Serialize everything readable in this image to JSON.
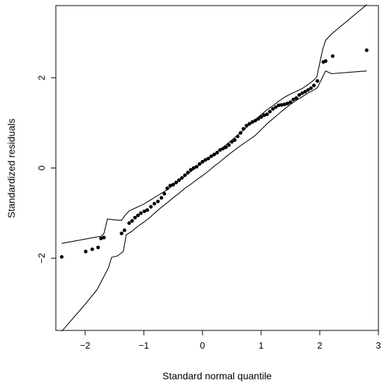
{
  "chart_data": {
    "type": "scatter",
    "title": "",
    "xlabel": "Standard normal quantile",
    "ylabel": "Standardized residuals",
    "xlim": [
      -2.5,
      3.0
    ],
    "ylim": [
      -3.6,
      3.6
    ],
    "x_ticks": [
      -2,
      -1,
      0,
      1,
      2,
      3
    ],
    "x_tick_labels": [
      "−2",
      "−1",
      "0",
      "1",
      "2",
      "3"
    ],
    "y_ticks": [
      -2,
      0,
      2
    ],
    "y_tick_labels": [
      "−2",
      "0",
      "2"
    ],
    "grid": false,
    "legend": "none",
    "point_color": "#000000",
    "line_color": "#000000",
    "points": {
      "x": [
        -2.4,
        -1.99,
        -1.88,
        -1.78,
        -1.73,
        -1.68,
        -1.38,
        -1.33,
        -1.25,
        -1.2,
        -1.15,
        -1.1,
        -1.05,
        -0.99,
        -0.94,
        -0.88,
        -0.82,
        -0.76,
        -0.7,
        -0.65,
        -0.6,
        -0.55,
        -0.5,
        -0.45,
        -0.4,
        -0.35,
        -0.3,
        -0.25,
        -0.2,
        -0.15,
        -0.1,
        -0.05,
        0.0,
        0.05,
        0.1,
        0.15,
        0.2,
        0.25,
        0.3,
        0.35,
        0.4,
        0.45,
        0.5,
        0.55,
        0.6,
        0.65,
        0.7,
        0.75,
        0.8,
        0.85,
        0.9,
        0.95,
        1.0,
        1.05,
        1.1,
        1.15,
        1.2,
        1.25,
        1.3,
        1.35,
        1.4,
        1.45,
        1.5,
        1.55,
        1.6,
        1.65,
        1.7,
        1.75,
        1.8,
        1.85,
        1.9,
        1.96,
        2.06,
        2.1,
        2.22,
        2.8
      ],
      "y": [
        -1.97,
        -1.85,
        -1.8,
        -1.76,
        -1.56,
        -1.54,
        -1.45,
        -1.38,
        -1.22,
        -1.17,
        -1.1,
        -1.05,
        -1.0,
        -0.96,
        -0.93,
        -0.86,
        -0.79,
        -0.74,
        -0.66,
        -0.57,
        -0.45,
        -0.39,
        -0.37,
        -0.32,
        -0.27,
        -0.22,
        -0.16,
        -0.1,
        -0.04,
        0.0,
        0.03,
        0.09,
        0.14,
        0.18,
        0.21,
        0.26,
        0.3,
        0.34,
        0.4,
        0.43,
        0.46,
        0.51,
        0.58,
        0.62,
        0.7,
        0.78,
        0.87,
        0.94,
        0.98,
        1.02,
        1.05,
        1.09,
        1.13,
        1.17,
        1.19,
        1.25,
        1.31,
        1.35,
        1.39,
        1.4,
        1.41,
        1.43,
        1.46,
        1.52,
        1.55,
        1.62,
        1.66,
        1.69,
        1.73,
        1.77,
        1.83,
        1.93,
        2.35,
        2.37,
        2.48,
        2.61
      ]
    },
    "envelope_upper": {
      "x": [
        -2.4,
        -1.72,
        -1.68,
        -1.62,
        -1.5,
        -1.38,
        -1.32,
        -1.25,
        -1.1,
        -1.0,
        -0.9,
        -0.8,
        -0.7,
        -0.6,
        -0.5,
        -0.4,
        -0.3,
        -0.2,
        -0.1,
        0.0,
        0.1,
        0.2,
        0.3,
        0.4,
        0.5,
        0.6,
        0.7,
        0.8,
        0.9,
        1.0,
        1.1,
        1.2,
        1.3,
        1.4,
        1.5,
        1.6,
        1.7,
        1.8,
        1.9,
        1.95,
        2.05,
        2.1,
        2.2,
        2.8
      ],
      "y": [
        -1.67,
        -1.51,
        -1.45,
        -1.13,
        -1.15,
        -1.16,
        -1.05,
        -0.95,
        -0.86,
        -0.8,
        -0.72,
        -0.64,
        -0.56,
        -0.48,
        -0.38,
        -0.28,
        -0.18,
        -0.08,
        0.02,
        0.12,
        0.22,
        0.31,
        0.41,
        0.51,
        0.62,
        0.73,
        0.84,
        0.96,
        1.07,
        1.18,
        1.29,
        1.38,
        1.48,
        1.57,
        1.64,
        1.7,
        1.76,
        1.85,
        1.95,
        2.02,
        2.63,
        2.83,
        2.97,
        3.62
      ]
    },
    "envelope_lower": {
      "x": [
        -2.4,
        -2.0,
        -1.8,
        -1.65,
        -1.6,
        -1.55,
        -1.45,
        -1.35,
        -1.3,
        -1.2,
        -1.1,
        -1.0,
        -0.9,
        -0.8,
        -0.7,
        -0.6,
        -0.5,
        -0.4,
        -0.3,
        -0.2,
        -0.1,
        0.0,
        0.1,
        0.2,
        0.3,
        0.4,
        0.5,
        0.6,
        0.7,
        0.8,
        0.9,
        1.0,
        1.1,
        1.2,
        1.3,
        1.4,
        1.5,
        1.6,
        1.7,
        1.8,
        1.9,
        1.96,
        2.05,
        2.1,
        2.2,
        2.8
      ],
      "y": [
        -3.62,
        -3.02,
        -2.7,
        -2.33,
        -2.2,
        -1.98,
        -1.95,
        -1.85,
        -1.48,
        -1.4,
        -1.29,
        -1.2,
        -1.1,
        -0.98,
        -0.87,
        -0.77,
        -0.66,
        -0.56,
        -0.45,
        -0.36,
        -0.26,
        -0.17,
        -0.07,
        0.04,
        0.14,
        0.25,
        0.35,
        0.45,
        0.54,
        0.63,
        0.72,
        0.85,
        0.98,
        1.09,
        1.2,
        1.31,
        1.41,
        1.5,
        1.58,
        1.66,
        1.73,
        1.78,
        2.02,
        2.15,
        2.09,
        2.15
      ]
    }
  }
}
